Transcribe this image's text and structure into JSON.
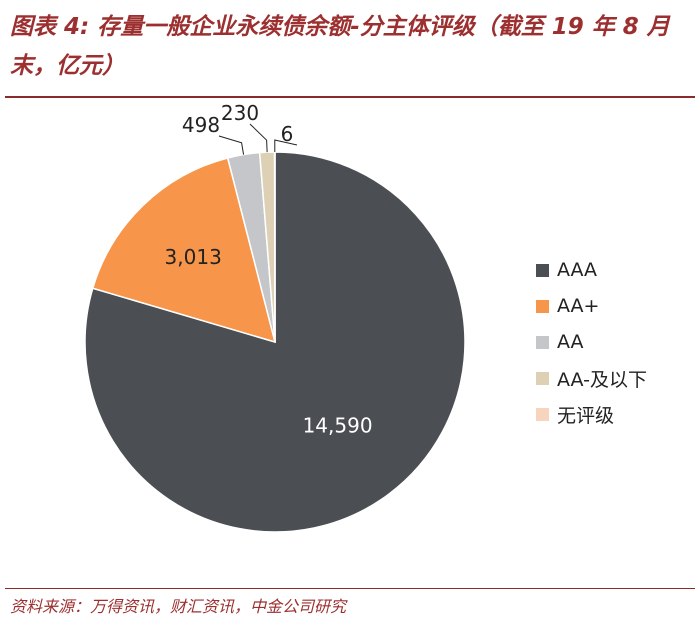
{
  "title": "图表 4: 存量一般企业永续债余额-分主体评级（截至 19 年 8 月末，亿元）",
  "source": "资料来源：万得资讯，财汇资讯，中金公司研究",
  "chart_data": {
    "type": "pie",
    "title": "图表 4: 存量一般企业永续债余额-分主体评级（截至 19 年 8 月末，亿元）",
    "legend_position": "right",
    "slices": [
      {
        "label": "AAA",
        "value": 14590,
        "value_label": "14,590",
        "color": "#4b4e53"
      },
      {
        "label": "AA+",
        "value": 3013,
        "value_label": "3,013",
        "color": "#f7954a"
      },
      {
        "label": "AA",
        "value": 498,
        "value_label": "498",
        "color": "#c4c6c9"
      },
      {
        "label": "AA-及以下",
        "value": 230,
        "value_label": "230",
        "color": "#ddd0b4"
      },
      {
        "label": "无评级",
        "value": 6,
        "value_label": "6",
        "color": "#f6d4bd"
      }
    ]
  }
}
